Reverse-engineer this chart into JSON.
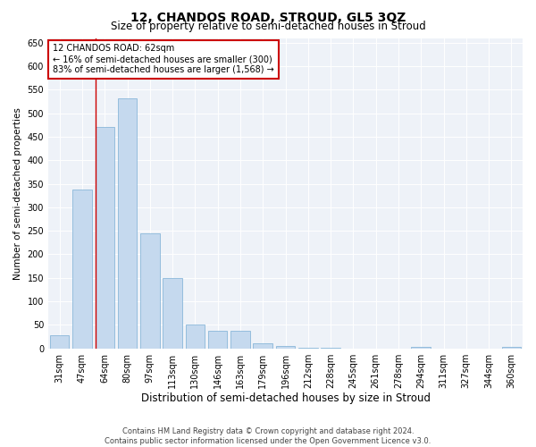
{
  "title": "12, CHANDOS ROAD, STROUD, GL5 3QZ",
  "subtitle": "Size of property relative to semi-detached houses in Stroud",
  "xlabel": "Distribution of semi-detached houses by size in Stroud",
  "ylabel": "Number of semi-detached properties",
  "categories": [
    "31sqm",
    "47sqm",
    "64sqm",
    "80sqm",
    "97sqm",
    "113sqm",
    "130sqm",
    "146sqm",
    "163sqm",
    "179sqm",
    "196sqm",
    "212sqm",
    "228sqm",
    "245sqm",
    "261sqm",
    "278sqm",
    "294sqm",
    "311sqm",
    "327sqm",
    "344sqm",
    "360sqm"
  ],
  "values": [
    28,
    338,
    470,
    532,
    244,
    150,
    50,
    38,
    37,
    10,
    5,
    2,
    2,
    0,
    0,
    0,
    4,
    0,
    0,
    0,
    4
  ],
  "bar_color": "#c5d9ee",
  "bar_edge_color": "#7aaed4",
  "property_sqm": 62,
  "pct_smaller": 16,
  "n_smaller": 300,
  "pct_larger": 83,
  "n_larger": 1568,
  "annotation_label": "12 CHANDOS ROAD: 62sqm",
  "annotation_line1": "← 16% of semi-detached houses are smaller (300)",
  "annotation_line2": "83% of semi-detached houses are larger (1,568) →",
  "ylim": [
    0,
    660
  ],
  "yticks": [
    0,
    50,
    100,
    150,
    200,
    250,
    300,
    350,
    400,
    450,
    500,
    550,
    600,
    650
  ],
  "footer_line1": "Contains HM Land Registry data © Crown copyright and database right 2024.",
  "footer_line2": "Contains public sector information licensed under the Open Government Licence v3.0.",
  "bg_color": "#ffffff",
  "plot_bg_color": "#eef2f8",
  "grid_color": "#ffffff",
  "annotation_box_color": "#ffffff",
  "annotation_box_edge": "#cc0000",
  "property_line_color": "#cc0000",
  "title_fontsize": 10,
  "subtitle_fontsize": 8.5,
  "tick_fontsize": 7,
  "xlabel_fontsize": 8.5,
  "ylabel_fontsize": 7.5,
  "footer_fontsize": 6,
  "annotation_fontsize": 7
}
